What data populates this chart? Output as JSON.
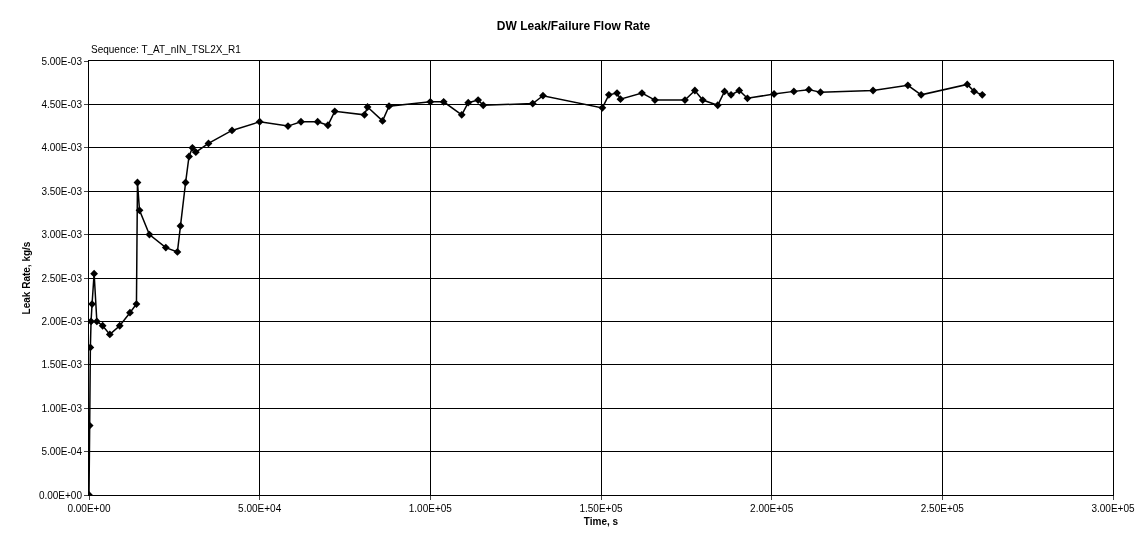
{
  "chart_data": {
    "type": "line",
    "title": "DW Leak/Failure Flow Rate",
    "subtitle": "Sequence: T_AT_nIN_TSL2X_R1",
    "xlabel": "Time, s",
    "ylabel": "Leak Rate, kg/s",
    "xlim": [
      0,
      300000
    ],
    "xticks": [
      {
        "value": 0,
        "label": "0.00E+00"
      },
      {
        "value": 50000,
        "label": "5.00E+04"
      },
      {
        "value": 100000,
        "label": "1.00E+05"
      },
      {
        "value": 150000,
        "label": "1.50E+05"
      },
      {
        "value": 200000,
        "label": "2.00E+05"
      },
      {
        "value": 250000,
        "label": "2.50E+05"
      },
      {
        "value": 300000,
        "label": "3.00E+05"
      }
    ],
    "ylim": [
      0,
      0.005
    ],
    "yticks": [
      {
        "value": 0,
        "label": "0.00E+00"
      },
      {
        "value": 0.0005,
        "label": "5.00E-04"
      },
      {
        "value": 0.001,
        "label": "1.00E-03"
      },
      {
        "value": 0.0015,
        "label": "1.50E-03"
      },
      {
        "value": 0.002,
        "label": "2.00E-03"
      },
      {
        "value": 0.0025,
        "label": "2.50E-03"
      },
      {
        "value": 0.003,
        "label": "3.00E-03"
      },
      {
        "value": 0.0035,
        "label": "3.50E-03"
      },
      {
        "value": 0.004,
        "label": "4.00E-03"
      },
      {
        "value": 0.0045,
        "label": "4.50E-03"
      },
      {
        "value": 0.005,
        "label": "5.00E-03"
      }
    ],
    "grid": true,
    "marker": "diamond",
    "line_style": "solid",
    "series": [
      {
        "color": "#000000",
        "x": [
          0,
          200,
          400,
          600,
          900,
          1500,
          2300,
          4000,
          6100,
          9000,
          12000,
          13900,
          14200,
          14800,
          17700,
          22500,
          25900,
          26800,
          28300,
          29300,
          30300,
          31300,
          35000,
          41900,
          50000,
          58300,
          62100,
          67000,
          70000,
          72000,
          80700,
          81600,
          86000,
          87900,
          100000,
          103900,
          109200,
          111100,
          114000,
          115500,
          130000,
          133000,
          150400,
          152300,
          154700,
          155700,
          162000,
          165800,
          174600,
          177500,
          179800,
          184200,
          186200,
          188100,
          190500,
          192900,
          200700,
          206500,
          210900,
          214300,
          229700,
          239900,
          243800,
          257300,
          259300,
          261700
        ],
        "values": [
          0,
          0.0008,
          0.0017,
          0.002,
          0.0022,
          0.00255,
          0.002,
          0.00195,
          0.00185,
          0.00195,
          0.0021,
          0.0022,
          0.0036,
          0.00328,
          0.003,
          0.00285,
          0.0028,
          0.0031,
          0.0036,
          0.0039,
          0.004,
          0.00395,
          0.00405,
          0.0042,
          0.0043,
          0.00425,
          0.0043,
          0.0043,
          0.00426,
          0.00442,
          0.00438,
          0.00447,
          0.00431,
          0.00448,
          0.00453,
          0.00453,
          0.00438,
          0.00452,
          0.00455,
          0.00449,
          0.00451,
          0.0046,
          0.00446,
          0.00461,
          0.00463,
          0.00456,
          0.00463,
          0.00455,
          0.00455,
          0.00466,
          0.00455,
          0.00449,
          0.00465,
          0.00461,
          0.00466,
          0.00457,
          0.00462,
          0.00465,
          0.00467,
          0.00464,
          0.00466,
          0.00472,
          0.00461,
          0.00473,
          0.00465,
          0.00461
        ]
      }
    ]
  }
}
